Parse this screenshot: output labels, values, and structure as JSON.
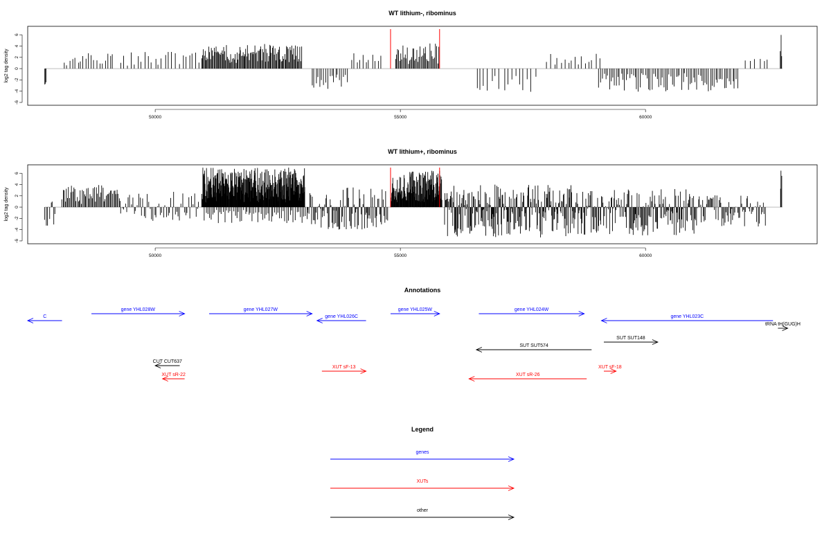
{
  "colors": {
    "genes": "#0000ff",
    "xuts": "#ff0000",
    "other": "#000000",
    "marker": "#ff0000",
    "baseline": "#bebebe"
  },
  "chart_data": [
    {
      "type": "bar",
      "id": "top",
      "title": "WT lithium-, ribominus",
      "ylabel": "log2 tag density",
      "xlim": [
        47400,
        63500
      ],
      "ylim": [
        -6.5,
        7.5
      ],
      "xticks": [
        "50000",
        "55000",
        "60000"
      ],
      "yticks": [
        "-6",
        "-4",
        "-2",
        "0",
        "2",
        "4",
        "6"
      ],
      "markers": [
        54800,
        55800
      ],
      "clusters": [
        {
          "from": 47750,
          "to": 47770,
          "step": 10,
          "min": -3.0,
          "max": -2.2,
          "seed": 11
        },
        {
          "from": 48150,
          "to": 49150,
          "step": 55,
          "min": 0.5,
          "max": 2.8,
          "seed": 12
        },
        {
          "from": 49300,
          "to": 50950,
          "step": 70,
          "min": 0.4,
          "max": 3.0,
          "seed": 13
        },
        {
          "from": 50950,
          "to": 53000,
          "step": 18,
          "min": 1.0,
          "max": 4.4,
          "seed": 14
        },
        {
          "from": 53200,
          "to": 53950,
          "step": 40,
          "min": -3.6,
          "max": -1.0,
          "seed": 15
        },
        {
          "from": 54000,
          "to": 54650,
          "step": 60,
          "min": 1.0,
          "max": 3.2,
          "seed": 16
        },
        {
          "from": 54900,
          "to": 55800,
          "step": 22,
          "min": 0.8,
          "max": 4.5,
          "seed": 17
        },
        {
          "from": 56550,
          "to": 57800,
          "step": 80,
          "min": -4.2,
          "max": -1.2,
          "seed": 18
        },
        {
          "from": 58000,
          "to": 59050,
          "step": 70,
          "min": 0.6,
          "max": 3.0,
          "seed": 19
        },
        {
          "from": 59050,
          "to": 61900,
          "step": 35,
          "min": -4.2,
          "max": -0.8,
          "seed": 20
        },
        {
          "from": 62050,
          "to": 62550,
          "step": 90,
          "min": 1.0,
          "max": 2.8,
          "seed": 21
        },
        {
          "from": 62750,
          "to": 62790,
          "step": 15,
          "min": 2.0,
          "max": 6.5,
          "seed": 22
        }
      ]
    },
    {
      "type": "bar",
      "id": "bottom",
      "title": "WT lithium+, ribominus",
      "ylabel": "log2 tag density",
      "xlim": [
        47400,
        63500
      ],
      "ylim": [
        -6.5,
        7.5
      ],
      "xticks": [
        "50000",
        "55000",
        "60000"
      ],
      "yticks": [
        "-6",
        "-4",
        "-2",
        "0",
        "2",
        "4",
        "6"
      ],
      "markers": [
        54800,
        55800
      ],
      "clusters": [
        {
          "from": 47750,
          "to": 47950,
          "step": 25,
          "min": -3.5,
          "max": 1.5,
          "seed": 31
        },
        {
          "from": 48100,
          "to": 49300,
          "step": 22,
          "min": 0.5,
          "max": 4.0,
          "seed": 32
        },
        {
          "from": 49300,
          "to": 50900,
          "step": 30,
          "min": -2.5,
          "max": 3.0,
          "seed": 33
        },
        {
          "from": 50950,
          "to": 53050,
          "step": 7,
          "min": 0.8,
          "max": 7.0,
          "seed": 34
        },
        {
          "from": 51000,
          "to": 53100,
          "step": 35,
          "min": -3.0,
          "max": -0.5,
          "seed": 35
        },
        {
          "from": 53100,
          "to": 54750,
          "step": 18,
          "min": -4.0,
          "max": 3.5,
          "seed": 36
        },
        {
          "from": 54800,
          "to": 55850,
          "step": 8,
          "min": 0.8,
          "max": 6.6,
          "seed": 37
        },
        {
          "from": 55900,
          "to": 58500,
          "step": 12,
          "min": -5.5,
          "max": 4.0,
          "seed": 38
        },
        {
          "from": 58500,
          "to": 61000,
          "step": 14,
          "min": -5.0,
          "max": 3.2,
          "seed": 39
        },
        {
          "from": 61000,
          "to": 62450,
          "step": 20,
          "min": -3.5,
          "max": 2.2,
          "seed": 40
        },
        {
          "from": 62750,
          "to": 62790,
          "step": 15,
          "min": 2.0,
          "max": 7.0,
          "seed": 41
        }
      ]
    }
  ],
  "annotations": {
    "title": "Annotations",
    "features": [
      {
        "label": "C",
        "from": 48100,
        "to": 47400,
        "row": 1,
        "cls": "genes"
      },
      {
        "label": "gene YHL028W",
        "from": 48700,
        "to": 50600,
        "row": 0,
        "cls": "genes"
      },
      {
        "label": "gene YHL027W",
        "from": 51100,
        "to": 53200,
        "row": 0,
        "cls": "genes"
      },
      {
        "label": "gene YHL026C",
        "from": 54300,
        "to": 53300,
        "row": 1,
        "cls": "genes"
      },
      {
        "label": "gene YHL025W",
        "from": 54800,
        "to": 55800,
        "row": 0,
        "cls": "genes"
      },
      {
        "label": "gene YHL024W",
        "from": 56600,
        "to": 58750,
        "row": 0,
        "cls": "genes"
      },
      {
        "label": "gene YHL023C",
        "from": 62600,
        "to": 59100,
        "row": 1,
        "cls": "genes"
      },
      {
        "label": "tRNA tH(GUG)H",
        "from": 62700,
        "to": 62900,
        "row": 2,
        "cls": "other"
      },
      {
        "label": "SUT SUT574",
        "from": 58900,
        "to": 56550,
        "row": 4,
        "cls": "other"
      },
      {
        "label": "SUT SUT148",
        "from": 59150,
        "to": 60250,
        "row": 3,
        "cls": "other"
      },
      {
        "label": "CUT CUT637",
        "from": 50500,
        "to": 50000,
        "row": 5,
        "cls": "other"
      },
      {
        "label": "XUT sF-13",
        "from": 53400,
        "to": 54300,
        "row": 6,
        "cls": "xuts"
      },
      {
        "label": "XUT sF-18",
        "from": 59150,
        "to": 59400,
        "row": 6,
        "cls": "xuts"
      },
      {
        "label": "XUT sR-22",
        "from": 50600,
        "to": 50150,
        "row": 7,
        "cls": "xuts"
      },
      {
        "label": "XUT sR-26",
        "from": 58800,
        "to": 56400,
        "row": 7,
        "cls": "xuts"
      }
    ]
  },
  "legend": {
    "title": "Legend",
    "items": [
      {
        "label": "genes",
        "cls": "genes"
      },
      {
        "label": "XUTs",
        "cls": "xuts"
      },
      {
        "label": "other",
        "cls": "other"
      }
    ]
  }
}
